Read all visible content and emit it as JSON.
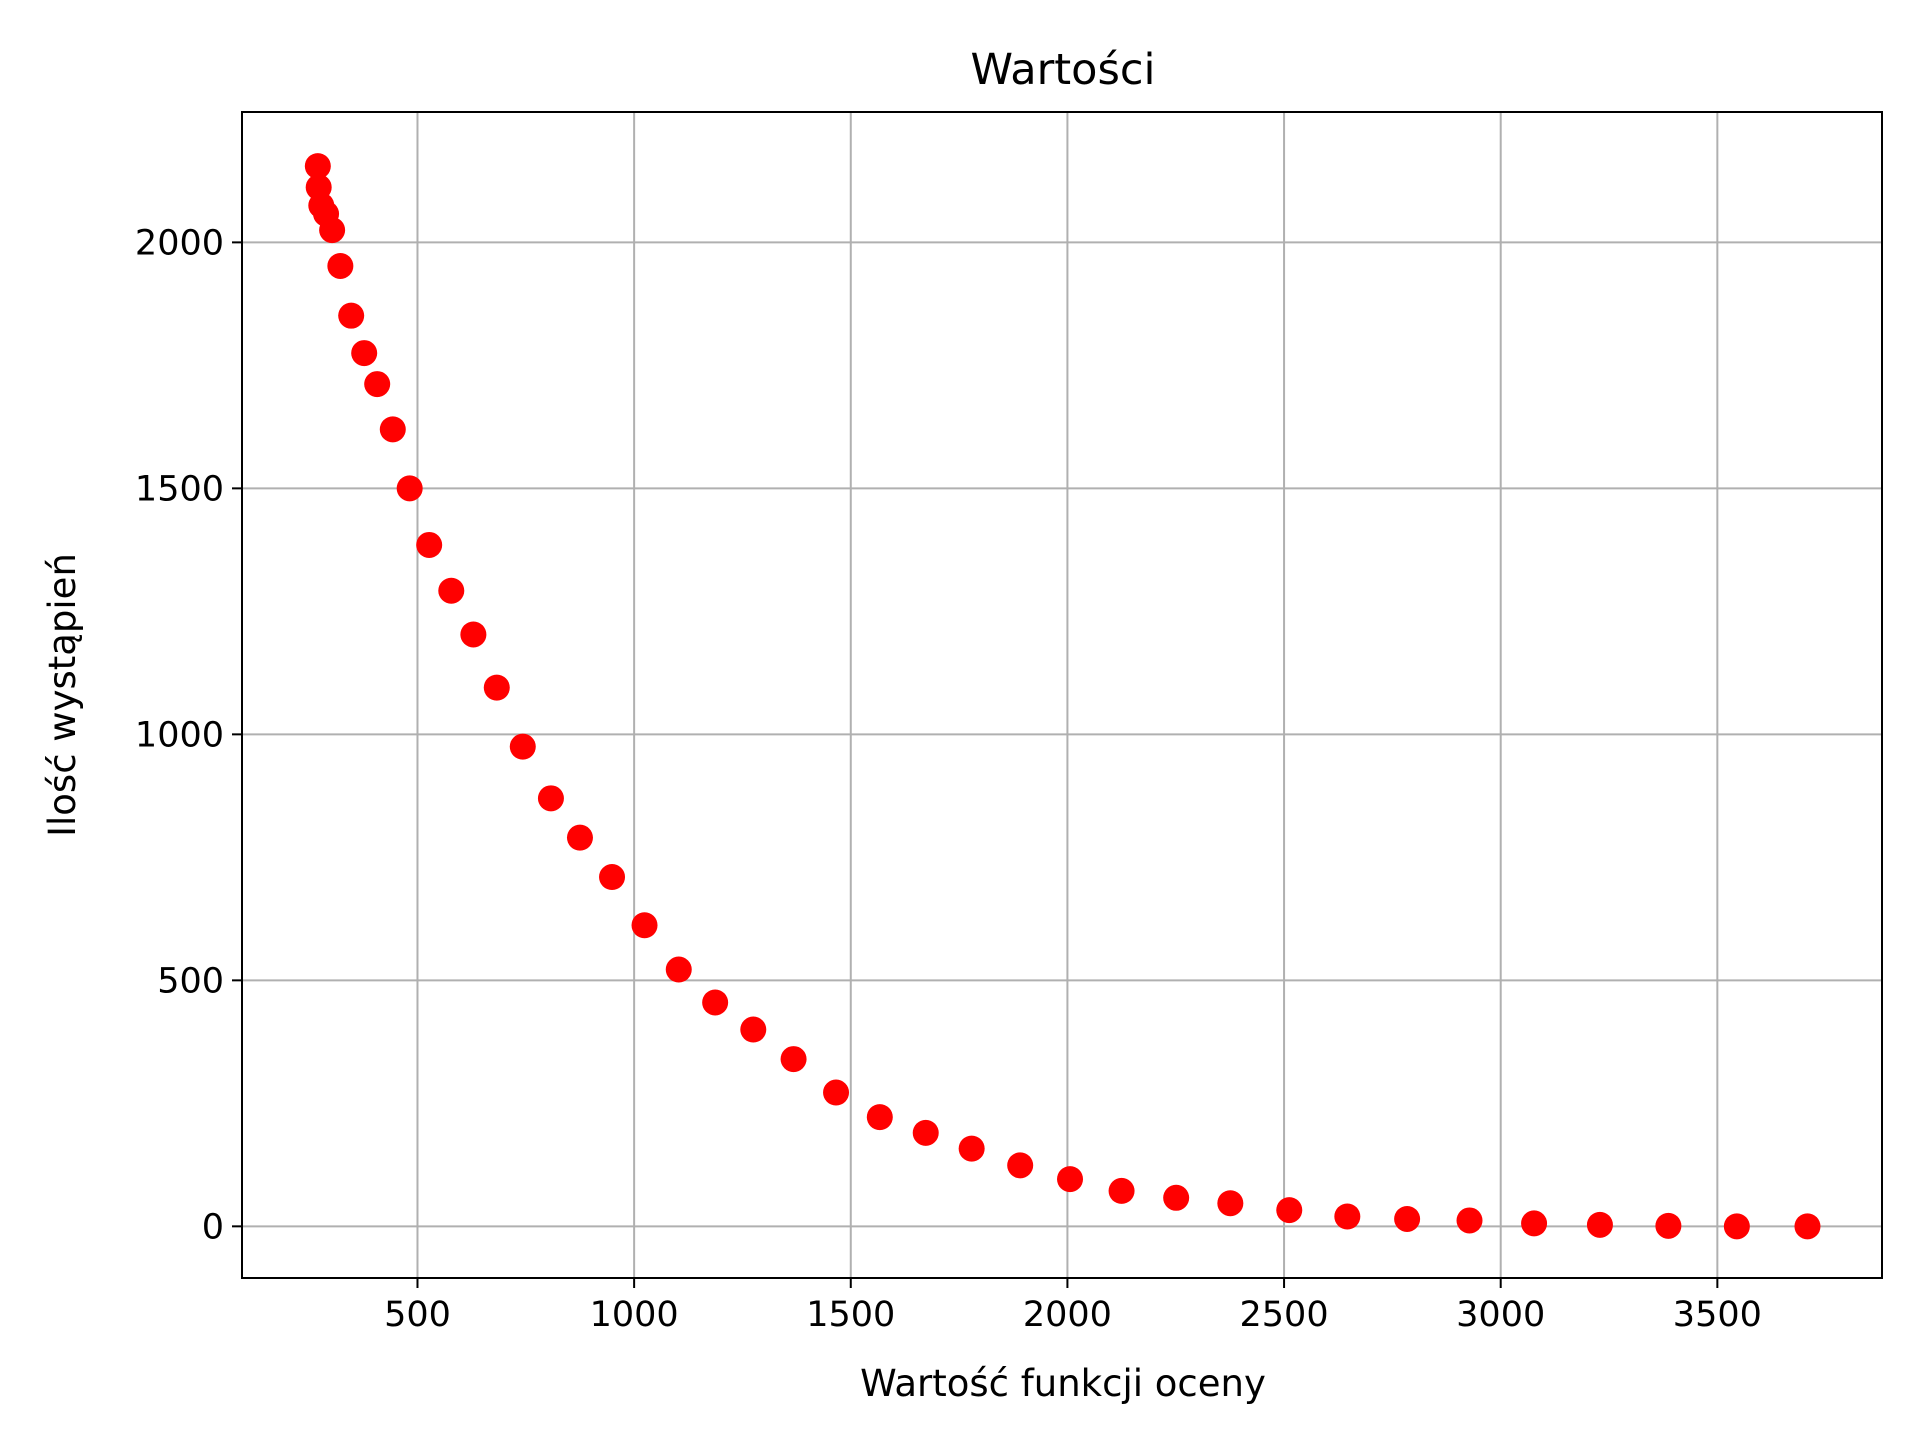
{
  "chart_data": {
    "type": "scatter",
    "title": "Wartości",
    "xlabel": "Wartość funkcji oceny",
    "ylabel": "Ilość wystąpień",
    "xlim": [
      95,
      3880
    ],
    "ylim": [
      -105,
      2265
    ],
    "xticks": [
      500,
      1000,
      1500,
      2000,
      2500,
      3000,
      3500
    ],
    "yticks": [
      0,
      500,
      1000,
      1500,
      2000
    ],
    "grid": true,
    "marker_color": "#ff0000",
    "series": [
      {
        "x": [
          270,
          272,
          278,
          289,
          303,
          322,
          347,
          377,
          407,
          443,
          482,
          527,
          578,
          629,
          683,
          743,
          808,
          875,
          949,
          1024,
          1103,
          1187,
          1275,
          1368,
          1466,
          1567,
          1673,
          1779,
          1891,
          2006,
          2125,
          2251,
          2376,
          2512,
          2646,
          2784,
          2928,
          3077,
          3229,
          3387,
          3545,
          3708
        ],
        "y": [
          2155,
          2112,
          2075,
          2058,
          2025,
          1952,
          1851,
          1775,
          1712,
          1620,
          1500,
          1385,
          1292,
          1203,
          1095,
          975,
          870,
          790,
          710,
          612,
          522,
          455,
          400,
          340,
          272,
          222,
          190,
          158,
          124,
          96,
          72,
          58,
          47,
          33,
          20,
          15,
          12,
          6,
          3,
          1,
          0,
          0
        ]
      }
    ]
  }
}
